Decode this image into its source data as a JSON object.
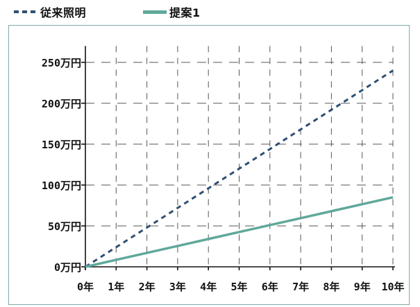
{
  "chart_data": {
    "type": "line",
    "x": [
      "0年",
      "1年",
      "2年",
      "3年",
      "4年",
      "5年",
      "6年",
      "7年",
      "8年",
      "9年",
      "10年"
    ],
    "y_ticks": [
      "0万円",
      "50万円",
      "100万円",
      "150万円",
      "200万円",
      "250万円"
    ],
    "ylim": [
      0,
      270
    ],
    "grid": true,
    "legend_position": "top-left",
    "series": [
      {
        "name": "従来照明",
        "style": "dashed",
        "color": "#2f4f73",
        "values": [
          0,
          24,
          48,
          72,
          96,
          120,
          144,
          168,
          192,
          216,
          240
        ]
      },
      {
        "name": "提案1",
        "style": "solid",
        "color": "#5fa89a",
        "values": [
          0,
          8.5,
          17,
          25.5,
          34,
          42.5,
          51,
          59.5,
          68,
          76.5,
          85
        ]
      }
    ]
  }
}
